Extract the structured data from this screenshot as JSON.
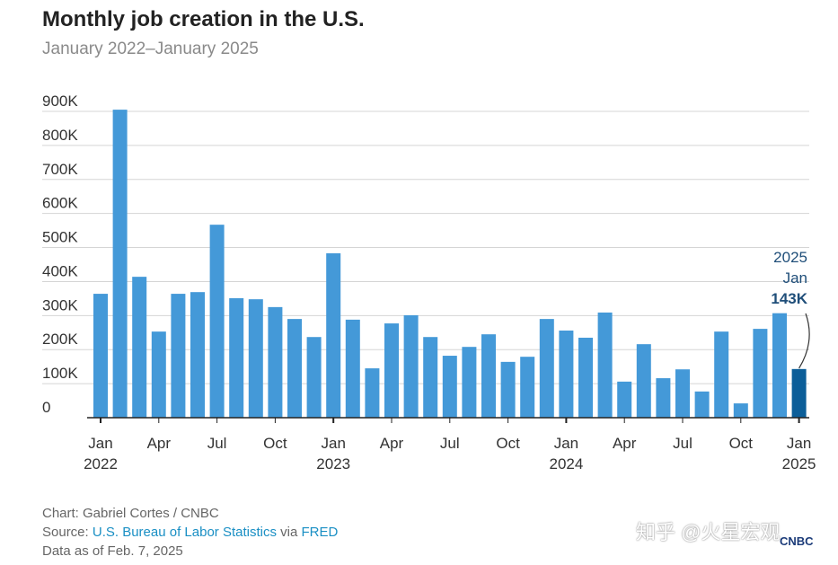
{
  "chart_data": {
    "type": "bar",
    "title": "Monthly job creation in the U.S.",
    "subtitle": "January 2022–January 2025",
    "categories": [
      "2022-01",
      "2022-02",
      "2022-03",
      "2022-04",
      "2022-05",
      "2022-06",
      "2022-07",
      "2022-08",
      "2022-09",
      "2022-10",
      "2022-11",
      "2022-12",
      "2023-01",
      "2023-02",
      "2023-03",
      "2023-04",
      "2023-05",
      "2023-06",
      "2023-07",
      "2023-08",
      "2023-09",
      "2023-10",
      "2023-11",
      "2023-12",
      "2024-01",
      "2024-02",
      "2024-03",
      "2024-04",
      "2024-05",
      "2024-06",
      "2024-07",
      "2024-08",
      "2024-09",
      "2024-10",
      "2024-11",
      "2024-12",
      "2025-01"
    ],
    "values": [
      364,
      905,
      414,
      253,
      364,
      369,
      567,
      351,
      348,
      325,
      290,
      237,
      483,
      288,
      145,
      277,
      301,
      237,
      182,
      208,
      245,
      164,
      179,
      290,
      256,
      235,
      309,
      106,
      216,
      116,
      142,
      77,
      253,
      42,
      261,
      307,
      143
    ],
    "unit": "thousands",
    "ylim": [
      0,
      900
    ],
    "yticks": [
      "0",
      "100K",
      "200K",
      "300K",
      "400K",
      "500K",
      "600K",
      "700K",
      "800K",
      "900K"
    ],
    "xticks": [
      {
        "i": 0,
        "label": "Jan",
        "year": "2022"
      },
      {
        "i": 3,
        "label": "Apr"
      },
      {
        "i": 6,
        "label": "Jul"
      },
      {
        "i": 9,
        "label": "Oct"
      },
      {
        "i": 12,
        "label": "Jan",
        "year": "2023"
      },
      {
        "i": 15,
        "label": "Apr"
      },
      {
        "i": 18,
        "label": "Jul"
      },
      {
        "i": 21,
        "label": "Oct"
      },
      {
        "i": 24,
        "label": "Jan",
        "year": "2024"
      },
      {
        "i": 27,
        "label": "Apr"
      },
      {
        "i": 30,
        "label": "Jul"
      },
      {
        "i": 33,
        "label": "Oct"
      },
      {
        "i": 36,
        "label": "Jan",
        "year": "2025"
      }
    ],
    "grid": true,
    "colors": {
      "bar": "#4499d8",
      "highlight": "#0b5e99",
      "annotation": "#1f4e79"
    },
    "annotation": {
      "year": "2025",
      "month": "Jan",
      "value": "143K"
    }
  },
  "footer": {
    "credit": "Chart: Gabriel Cortes / CNBC",
    "source_prefix": "Source: ",
    "source_link": "U.S. Bureau of Labor Statistics",
    "source_via": " via ",
    "source_link2": "FRED",
    "data_as_of": "Data as of Feb. 7, 2025"
  },
  "watermark": "知乎 @火星宏观",
  "logo": "CNBC"
}
